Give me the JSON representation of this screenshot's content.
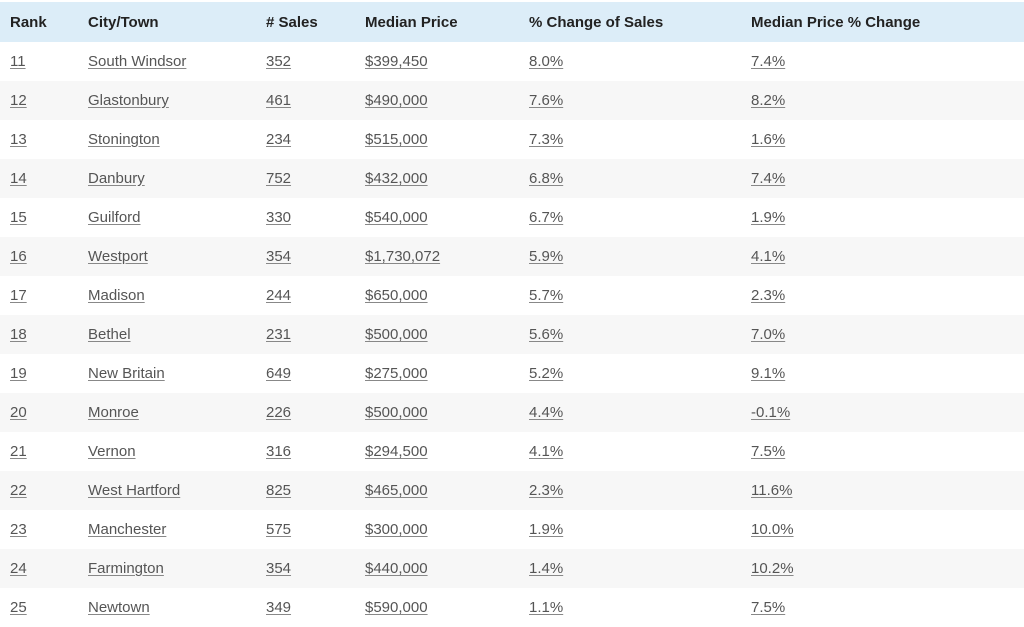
{
  "table": {
    "header": [
      "Rank",
      "City/Town",
      "# Sales",
      "Median Price",
      "% Change of Sales",
      "Median Price % Change"
    ],
    "rows": [
      [
        "11",
        "South Windsor",
        "352",
        "$399,450",
        "8.0%",
        "7.4%"
      ],
      [
        "12",
        "Glastonbury",
        "461",
        "$490,000",
        "7.6%",
        "8.2%"
      ],
      [
        "13",
        "Stonington",
        "234",
        "$515,000",
        "7.3%",
        "1.6%"
      ],
      [
        "14",
        "Danbury",
        "752",
        "$432,000",
        "6.8%",
        "7.4%"
      ],
      [
        "15",
        "Guilford",
        "330",
        "$540,000",
        "6.7%",
        "1.9%"
      ],
      [
        "16",
        "Westport",
        "354",
        "$1,730,072",
        "5.9%",
        "4.1%"
      ],
      [
        "17",
        "Madison",
        "244",
        "$650,000",
        "5.7%",
        "2.3%"
      ],
      [
        "18",
        "Bethel",
        "231",
        "$500,000",
        "5.6%",
        "7.0%"
      ],
      [
        "19",
        "New Britain",
        "649",
        "$275,000",
        "5.2%",
        "9.1%"
      ],
      [
        "20",
        "Monroe",
        "226",
        "$500,000",
        "4.4%",
        "-0.1%"
      ],
      [
        "21",
        "Vernon",
        "316",
        "$294,500",
        "4.1%",
        "7.5%"
      ],
      [
        "22",
        "West Hartford",
        "825",
        "$465,000",
        "2.3%",
        "11.6%"
      ],
      [
        "23",
        "Manchester",
        "575",
        "$300,000",
        "1.9%",
        "10.0%"
      ],
      [
        "24",
        "Farmington",
        "354",
        "$440,000",
        "1.4%",
        "10.2%"
      ],
      [
        "25",
        "Newtown",
        "349",
        "$590,000",
        "1.1%",
        "7.5%"
      ]
    ]
  }
}
